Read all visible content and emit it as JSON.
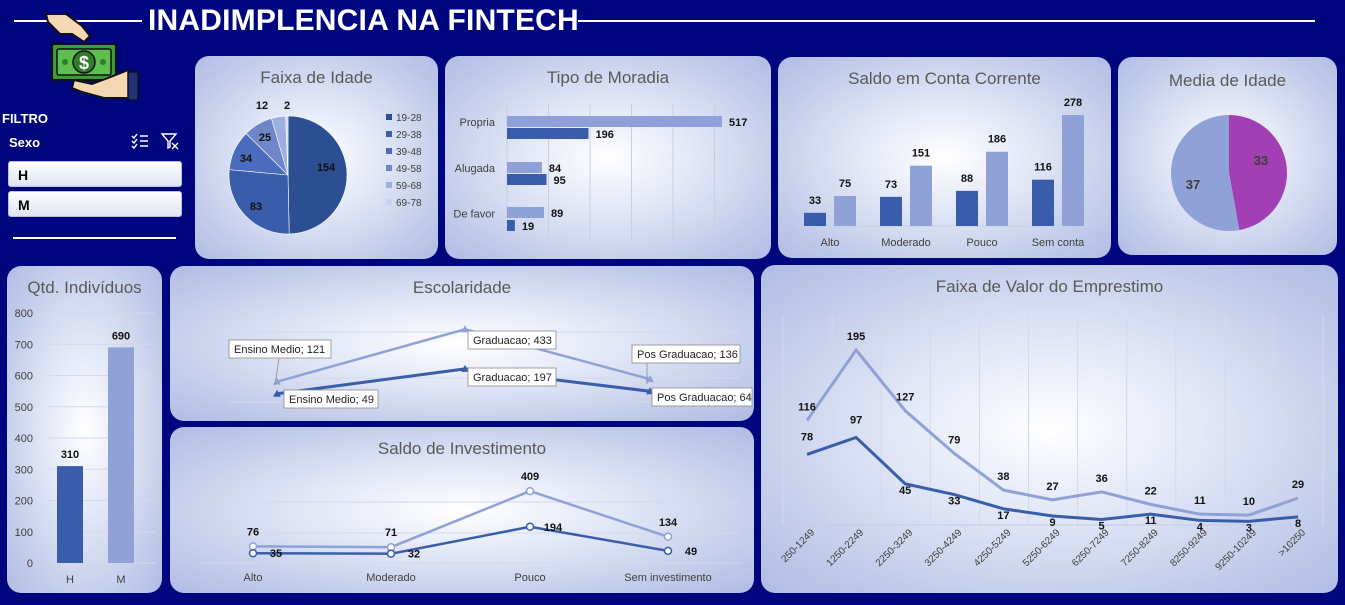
{
  "title": "INADIMPLENCIA NA FINTECH",
  "colors": {
    "dark": "#3a5dab",
    "light": "#8fa1d6",
    "purple": "#a23fb4",
    "navy": "#00067e"
  },
  "filter": {
    "label": "FILTRO",
    "field": "Sexo",
    "options": [
      "H",
      "M"
    ],
    "icons": [
      "multi-select-icon",
      "clear-filter-icon"
    ]
  },
  "charts": {
    "age_range": {
      "title": "Faixa de Idade",
      "chart_data": {
        "type": "pie",
        "categories": [
          "19-28",
          "29-38",
          "39-48",
          "49-58",
          "59-68",
          "69-78"
        ],
        "values": [
          154,
          83,
          34,
          25,
          12,
          2
        ]
      }
    },
    "housing": {
      "title": "Tipo de Moradia",
      "chart_data": {
        "type": "bar",
        "orientation": "horizontal",
        "categories": [
          "Propria",
          "Alugada",
          "De favor"
        ],
        "series": [
          {
            "values": [
              517,
              84,
              89
            ]
          },
          {
            "values": [
              196,
              95,
              19
            ]
          }
        ],
        "xlim": [
          0,
          600
        ]
      }
    },
    "checking_balance": {
      "title": "Saldo em Conta Corrente",
      "chart_data": {
        "type": "bar",
        "categories": [
          "Alto",
          "Moderado",
          "Pouco",
          "Sem conta"
        ],
        "series": [
          {
            "values": [
              33,
              73,
              88,
              116
            ]
          },
          {
            "values": [
              75,
              151,
              186,
              278
            ]
          }
        ],
        "ylim": [
          0,
          300
        ]
      }
    },
    "mean_age": {
      "title": "Media de Idade",
      "chart_data": {
        "type": "pie",
        "values": [
          33,
          37
        ]
      }
    },
    "individuals": {
      "title": "Qtd. Indivíduos",
      "chart_data": {
        "type": "bar",
        "categories": [
          "H",
          "M"
        ],
        "values": [
          310,
          690
        ],
        "yticks": [
          "0",
          "100",
          "200",
          "300",
          "400",
          "500",
          "600",
          "700",
          "800"
        ],
        "ylim": [
          0,
          800
        ]
      }
    },
    "education": {
      "title": "Escolaridade",
      "chart_data": {
        "type": "line",
        "categories": [
          "Ensino Medio",
          "Graduacao",
          "Pos Graduacao"
        ],
        "series": [
          {
            "values": [
              121,
              433,
              136
            ]
          },
          {
            "values": [
              49,
              197,
              64
            ]
          }
        ],
        "labels": [
          [
            "Ensino Medio; 121",
            "Graduacao; 433",
            "Pos Graduacao; 136"
          ],
          [
            "Ensino Medio; 49",
            "Graduacao; 197",
            "Pos Graduacao; 64"
          ]
        ],
        "ylim": [
          0,
          500
        ]
      }
    },
    "investment": {
      "title": "Saldo de Investimento",
      "chart_data": {
        "type": "line",
        "categories": [
          "Alto",
          "Moderado",
          "Pouco",
          "Sem investimento"
        ],
        "series": [
          {
            "values": [
              76,
              71,
              409,
              134
            ]
          },
          {
            "values": [
              35,
              32,
              194,
              49
            ]
          }
        ],
        "ylim": [
          0,
          500
        ]
      }
    },
    "loan_range": {
      "title": "Faixa de Valor do Emprestimo",
      "chart_data": {
        "type": "line",
        "categories": [
          "250-1249",
          "1250-2249",
          "2250-3249",
          "3250-4249",
          "4250-5249",
          "5250-6249",
          "6250-7249",
          "7250-8249",
          "8250-9249",
          "9250-10249",
          ">10250"
        ],
        "series": [
          {
            "values": [
              116,
              195,
              127,
              79,
              38,
              27,
              36,
              22,
              11,
              10,
              29
            ]
          },
          {
            "values": [
              78,
              97,
              45,
              33,
              17,
              9,
              5,
              11,
              4,
              3,
              8
            ]
          }
        ],
        "ylim": [
          0,
          220
        ]
      }
    }
  }
}
